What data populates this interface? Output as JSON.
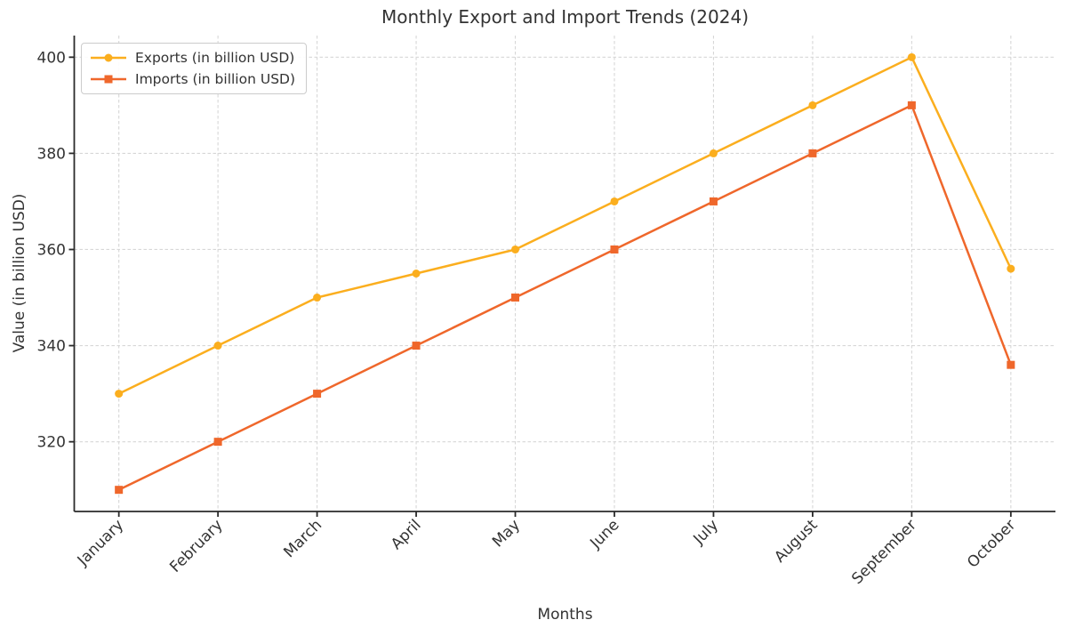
{
  "chart_data": {
    "type": "line",
    "title": "Monthly Export and Import Trends (2024)",
    "xlabel": "Months",
    "ylabel": "Value (in billion USD)",
    "categories": [
      "January",
      "February",
      "March",
      "April",
      "May",
      "June",
      "July",
      "August",
      "September",
      "October"
    ],
    "series": [
      {
        "name": "Exports (in billion USD)",
        "values": [
          330,
          340,
          350,
          355,
          360,
          370,
          380,
          390,
          400,
          356
        ],
        "color": "#FBAE1E",
        "marker": "circle"
      },
      {
        "name": "Imports (in billion USD)",
        "values": [
          310,
          320,
          330,
          340,
          350,
          360,
          370,
          380,
          390,
          336
        ],
        "color": "#EF672B",
        "marker": "square"
      }
    ],
    "y_ticks": [
      320,
      340,
      360,
      380,
      400
    ],
    "ylim": [
      305.5,
      404.5
    ],
    "x_margin": 0.45,
    "grid": {
      "visible": true,
      "style": "dashed",
      "color": "#d7d7d7"
    },
    "legend": {
      "position": "upper left"
    },
    "axis_color": "#2a2a2a",
    "text_color": "#333333",
    "line_width": 2.5,
    "marker_size": 9
  }
}
